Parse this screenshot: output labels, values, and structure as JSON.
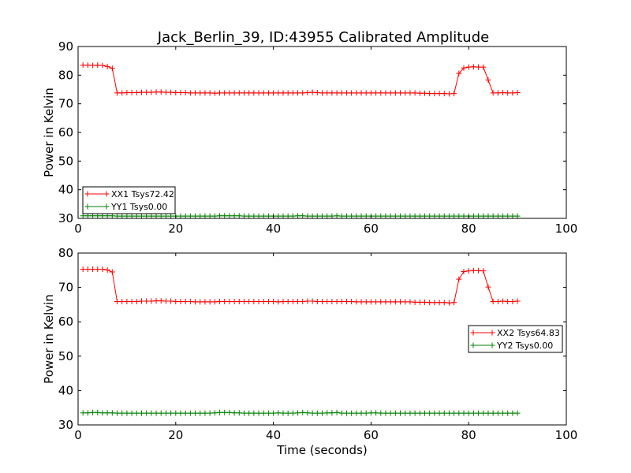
{
  "chart_data": [
    {
      "type": "line",
      "title": "Jack_Berlin_39, ID:43955 Calibrated Amplitude",
      "xlabel": "",
      "ylabel": "Power in Kelvin",
      "xlim": [
        0,
        100
      ],
      "ylim": [
        30,
        90
      ],
      "xticks": [
        "0",
        "20",
        "40",
        "60",
        "80",
        "100"
      ],
      "yticks": [
        "30",
        "40",
        "50",
        "60",
        "70",
        "80",
        "90"
      ],
      "grid": false,
      "legend_position": "lower-left",
      "series": [
        {
          "name": "XX1 Tsys72.42",
          "color": "#ff0000",
          "x": [
            1,
            2,
            3,
            4,
            5,
            6,
            7,
            8,
            9,
            10,
            11,
            12,
            13,
            14,
            15,
            16,
            17,
            18,
            19,
            20,
            21,
            22,
            23,
            24,
            25,
            26,
            27,
            28,
            29,
            30,
            31,
            32,
            33,
            34,
            35,
            36,
            37,
            38,
            39,
            40,
            41,
            42,
            43,
            44,
            45,
            46,
            47,
            48,
            49,
            50,
            51,
            52,
            53,
            54,
            55,
            56,
            57,
            58,
            59,
            60,
            61,
            62,
            63,
            64,
            65,
            66,
            67,
            68,
            69,
            70,
            71,
            72,
            73,
            74,
            75,
            76,
            77,
            78,
            79,
            80,
            81,
            82,
            83,
            84,
            85,
            86,
            87,
            88,
            89,
            90
          ],
          "y": [
            83.5,
            83.5,
            83.4,
            83.5,
            83.4,
            83.0,
            82.4,
            73.8,
            73.8,
            73.9,
            73.9,
            73.9,
            74.0,
            74.0,
            74.0,
            74.1,
            74.1,
            74.0,
            74.0,
            73.9,
            73.9,
            73.9,
            73.8,
            73.8,
            73.8,
            73.8,
            73.8,
            73.7,
            73.8,
            73.8,
            73.8,
            73.8,
            73.8,
            73.8,
            73.8,
            73.8,
            73.8,
            73.8,
            73.8,
            73.8,
            73.8,
            73.8,
            73.8,
            73.8,
            73.8,
            73.8,
            73.9,
            74.0,
            73.9,
            73.8,
            73.8,
            73.8,
            73.8,
            73.8,
            73.8,
            73.8,
            73.8,
            73.8,
            73.8,
            73.8,
            73.8,
            73.8,
            73.8,
            73.8,
            73.8,
            73.8,
            73.8,
            73.8,
            73.8,
            73.7,
            73.7,
            73.6,
            73.6,
            73.6,
            73.6,
            73.5,
            73.6,
            80.6,
            82.5,
            82.8,
            82.9,
            82.8,
            82.8,
            78.3,
            73.8,
            73.8,
            73.9,
            73.8,
            73.8,
            73.9
          ]
        },
        {
          "name": "YY1 Tsys0.00",
          "color": "#008000",
          "x": [
            1,
            2,
            3,
            4,
            5,
            6,
            7,
            8,
            9,
            10,
            11,
            12,
            13,
            14,
            15,
            16,
            17,
            18,
            19,
            20,
            21,
            22,
            23,
            24,
            25,
            26,
            27,
            28,
            29,
            30,
            31,
            32,
            33,
            34,
            35,
            36,
            37,
            38,
            39,
            40,
            41,
            42,
            43,
            44,
            45,
            46,
            47,
            48,
            49,
            50,
            51,
            52,
            53,
            54,
            55,
            56,
            57,
            58,
            59,
            60,
            61,
            62,
            63,
            64,
            65,
            66,
            67,
            68,
            69,
            70,
            71,
            72,
            73,
            74,
            75,
            76,
            77,
            78,
            79,
            80,
            81,
            82,
            83,
            84,
            85,
            86,
            87,
            88,
            89,
            90
          ],
          "y": [
            30.9,
            30.9,
            30.9,
            30.9,
            30.9,
            30.9,
            30.9,
            30.8,
            30.8,
            30.8,
            30.8,
            30.8,
            30.8,
            30.8,
            30.8,
            30.8,
            30.8,
            30.8,
            30.8,
            30.8,
            30.8,
            30.8,
            30.8,
            30.8,
            30.8,
            30.8,
            30.8,
            30.8,
            30.9,
            30.9,
            30.9,
            30.9,
            30.9,
            30.8,
            30.8,
            30.8,
            30.8,
            30.8,
            30.8,
            30.8,
            30.8,
            30.8,
            30.8,
            30.8,
            30.9,
            30.9,
            30.8,
            30.8,
            30.8,
            30.8,
            30.8,
            30.8,
            30.9,
            30.8,
            30.8,
            30.8,
            30.8,
            30.8,
            30.8,
            30.8,
            30.8,
            30.8,
            30.8,
            30.8,
            30.8,
            30.8,
            30.8,
            30.8,
            30.8,
            30.8,
            30.8,
            30.8,
            30.8,
            30.8,
            30.8,
            30.8,
            30.8,
            30.8,
            30.8,
            30.8,
            30.8,
            30.8,
            30.8,
            30.8,
            30.8,
            30.8,
            30.8,
            30.8,
            30.8,
            30.8
          ]
        }
      ]
    },
    {
      "type": "line",
      "title": "",
      "xlabel": "Time (seconds)",
      "ylabel": "Power in Kelvin",
      "xlim": [
        0,
        100
      ],
      "ylim": [
        30,
        80
      ],
      "xticks": [
        "0",
        "20",
        "40",
        "60",
        "80",
        "100"
      ],
      "yticks": [
        "30",
        "40",
        "50",
        "60",
        "70",
        "80"
      ],
      "grid": false,
      "legend_position": "center-right",
      "series": [
        {
          "name": "XX2 Tsys64.83",
          "color": "#ff0000",
          "x": [
            1,
            2,
            3,
            4,
            5,
            6,
            7,
            8,
            9,
            10,
            11,
            12,
            13,
            14,
            15,
            16,
            17,
            18,
            19,
            20,
            21,
            22,
            23,
            24,
            25,
            26,
            27,
            28,
            29,
            30,
            31,
            32,
            33,
            34,
            35,
            36,
            37,
            38,
            39,
            40,
            41,
            42,
            43,
            44,
            45,
            46,
            47,
            48,
            49,
            50,
            51,
            52,
            53,
            54,
            55,
            56,
            57,
            58,
            59,
            60,
            61,
            62,
            63,
            64,
            65,
            66,
            67,
            68,
            69,
            70,
            71,
            72,
            73,
            74,
            75,
            76,
            77,
            78,
            79,
            80,
            81,
            82,
            83,
            84,
            85,
            86,
            87,
            88,
            89,
            90
          ],
          "y": [
            75.3,
            75.3,
            75.3,
            75.3,
            75.3,
            75.1,
            74.5,
            65.9,
            65.9,
            65.9,
            65.9,
            65.9,
            66.0,
            66.0,
            66.0,
            66.1,
            66.1,
            66.0,
            66.0,
            65.9,
            65.9,
            65.9,
            65.9,
            65.8,
            65.8,
            65.8,
            65.8,
            65.8,
            65.9,
            65.9,
            65.9,
            65.9,
            65.9,
            65.9,
            65.9,
            65.9,
            65.9,
            65.9,
            65.9,
            65.9,
            65.8,
            65.9,
            65.9,
            65.9,
            65.9,
            65.9,
            66.0,
            66.0,
            65.9,
            65.9,
            65.9,
            65.9,
            65.9,
            65.9,
            65.9,
            65.9,
            65.8,
            65.8,
            65.8,
            65.8,
            65.8,
            65.8,
            65.8,
            65.8,
            65.8,
            65.8,
            65.8,
            65.8,
            65.7,
            65.7,
            65.7,
            65.6,
            65.6,
            65.6,
            65.6,
            65.5,
            65.6,
            72.4,
            74.6,
            74.8,
            74.9,
            74.9,
            74.8,
            70.1,
            65.9,
            65.9,
            66.0,
            65.9,
            65.9,
            66.0
          ]
        },
        {
          "name": "YY2 Tsys0.00",
          "color": "#008000",
          "x": [
            1,
            2,
            3,
            4,
            5,
            6,
            7,
            8,
            9,
            10,
            11,
            12,
            13,
            14,
            15,
            16,
            17,
            18,
            19,
            20,
            21,
            22,
            23,
            24,
            25,
            26,
            27,
            28,
            29,
            30,
            31,
            32,
            33,
            34,
            35,
            36,
            37,
            38,
            39,
            40,
            41,
            42,
            43,
            44,
            45,
            46,
            47,
            48,
            49,
            50,
            51,
            52,
            53,
            54,
            55,
            56,
            57,
            58,
            59,
            60,
            61,
            62,
            63,
            64,
            65,
            66,
            67,
            68,
            69,
            70,
            71,
            72,
            73,
            74,
            75,
            76,
            77,
            78,
            79,
            80,
            81,
            82,
            83,
            84,
            85,
            86,
            87,
            88,
            89,
            90
          ],
          "y": [
            33.5,
            33.5,
            33.6,
            33.6,
            33.5,
            33.5,
            33.5,
            33.4,
            33.4,
            33.4,
            33.4,
            33.4,
            33.4,
            33.4,
            33.4,
            33.4,
            33.4,
            33.4,
            33.4,
            33.4,
            33.4,
            33.4,
            33.4,
            33.4,
            33.4,
            33.4,
            33.4,
            33.5,
            33.6,
            33.6,
            33.6,
            33.5,
            33.5,
            33.4,
            33.4,
            33.4,
            33.4,
            33.4,
            33.4,
            33.4,
            33.5,
            33.4,
            33.4,
            33.4,
            33.5,
            33.6,
            33.5,
            33.4,
            33.4,
            33.4,
            33.5,
            33.5,
            33.6,
            33.4,
            33.4,
            33.4,
            33.4,
            33.4,
            33.4,
            33.5,
            33.5,
            33.4,
            33.4,
            33.4,
            33.4,
            33.4,
            33.4,
            33.4,
            33.4,
            33.4,
            33.4,
            33.4,
            33.4,
            33.4,
            33.4,
            33.4,
            33.4,
            33.4,
            33.4,
            33.4,
            33.4,
            33.4,
            33.4,
            33.4,
            33.4,
            33.4,
            33.4,
            33.4,
            33.4,
            33.4
          ]
        }
      ]
    }
  ]
}
